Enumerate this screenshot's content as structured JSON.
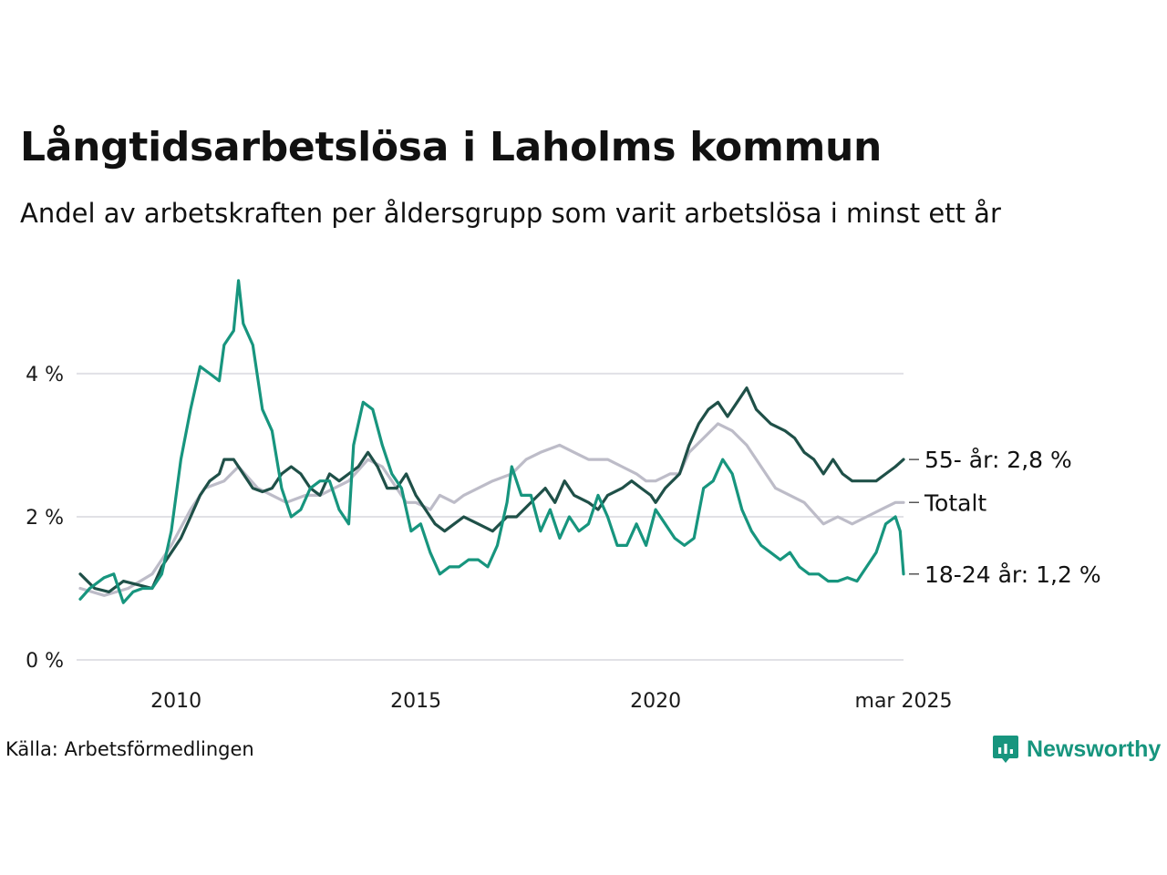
{
  "title": "Långtidsarbetslösa i Laholms kommun",
  "subtitle": "Andel av arbetskraften per åldersgrupp som varit arbetslösa i minst ett år",
  "source": "Källa: Arbetsförmedlingen",
  "brand": {
    "name": "Newsworthy",
    "icon": "newsworthy-logo-icon",
    "color": "#17957e"
  },
  "chart_data": {
    "type": "line",
    "title": "Långtidsarbetslösa i Laholms kommun",
    "subtitle": "Andel av arbetskraften per åldersgrupp som varit arbetslösa i minst ett år",
    "ylim": [
      0,
      5.4
    ],
    "yticks": [
      0,
      2,
      4
    ],
    "ytick_labels": [
      "0 %",
      "2 %",
      "4 %"
    ],
    "xlim": [
      2008.0,
      2025.17
    ],
    "xticks": [
      2010,
      2015,
      2020,
      2025.17
    ],
    "xtick_labels": [
      "2010",
      "2015",
      "2020",
      "mar 2025"
    ],
    "grid": "horizontal",
    "legend": "direct labels at line ends (right)",
    "series": [
      {
        "key": "total",
        "label": "Totalt",
        "color": "#bdbcc8",
        "points": [
          [
            2008.0,
            1.0
          ],
          [
            2008.5,
            0.9
          ],
          [
            2009.0,
            1.0
          ],
          [
            2009.5,
            1.2
          ],
          [
            2009.9,
            1.6
          ],
          [
            2010.3,
            2.1
          ],
          [
            2010.6,
            2.4
          ],
          [
            2011.0,
            2.5
          ],
          [
            2011.3,
            2.7
          ],
          [
            2011.7,
            2.4
          ],
          [
            2012.0,
            2.3
          ],
          [
            2012.3,
            2.2
          ],
          [
            2012.7,
            2.3
          ],
          [
            2013.0,
            2.3
          ],
          [
            2013.3,
            2.4
          ],
          [
            2013.6,
            2.5
          ],
          [
            2014.0,
            2.8
          ],
          [
            2014.3,
            2.7
          ],
          [
            2014.6,
            2.4
          ],
          [
            2014.8,
            2.2
          ],
          [
            2015.0,
            2.2
          ],
          [
            2015.3,
            2.1
          ],
          [
            2015.5,
            2.3
          ],
          [
            2015.8,
            2.2
          ],
          [
            2016.0,
            2.3
          ],
          [
            2016.3,
            2.4
          ],
          [
            2016.6,
            2.5
          ],
          [
            2017.0,
            2.6
          ],
          [
            2017.3,
            2.8
          ],
          [
            2017.6,
            2.9
          ],
          [
            2018.0,
            3.0
          ],
          [
            2018.3,
            2.9
          ],
          [
            2018.6,
            2.8
          ],
          [
            2019.0,
            2.8
          ],
          [
            2019.3,
            2.7
          ],
          [
            2019.6,
            2.6
          ],
          [
            2019.8,
            2.5
          ],
          [
            2020.0,
            2.5
          ],
          [
            2020.3,
            2.6
          ],
          [
            2020.5,
            2.6
          ],
          [
            2020.7,
            2.9
          ],
          [
            2021.0,
            3.1
          ],
          [
            2021.3,
            3.3
          ],
          [
            2021.6,
            3.2
          ],
          [
            2021.9,
            3.0
          ],
          [
            2022.2,
            2.7
          ],
          [
            2022.5,
            2.4
          ],
          [
            2022.8,
            2.3
          ],
          [
            2023.1,
            2.2
          ],
          [
            2023.5,
            1.9
          ],
          [
            2023.8,
            2.0
          ],
          [
            2024.1,
            1.9
          ],
          [
            2024.4,
            2.0
          ],
          [
            2024.7,
            2.1
          ],
          [
            2025.0,
            2.2
          ],
          [
            2025.17,
            2.2
          ]
        ],
        "end_value": 2.2,
        "end_label": "Totalt"
      },
      {
        "key": "55plus",
        "label": "55- år",
        "color": "#1f5048",
        "points": [
          [
            2008.0,
            1.2
          ],
          [
            2008.3,
            1.0
          ],
          [
            2008.6,
            0.95
          ],
          [
            2008.9,
            1.1
          ],
          [
            2009.2,
            1.05
          ],
          [
            2009.5,
            1.0
          ],
          [
            2009.7,
            1.3
          ],
          [
            2009.9,
            1.5
          ],
          [
            2010.1,
            1.7
          ],
          [
            2010.3,
            2.0
          ],
          [
            2010.5,
            2.3
          ],
          [
            2010.7,
            2.5
          ],
          [
            2010.9,
            2.6
          ],
          [
            2011.0,
            2.8
          ],
          [
            2011.2,
            2.8
          ],
          [
            2011.4,
            2.6
          ],
          [
            2011.6,
            2.4
          ],
          [
            2011.8,
            2.35
          ],
          [
            2012.0,
            2.4
          ],
          [
            2012.2,
            2.6
          ],
          [
            2012.4,
            2.7
          ],
          [
            2012.6,
            2.6
          ],
          [
            2012.8,
            2.4
          ],
          [
            2013.0,
            2.3
          ],
          [
            2013.2,
            2.6
          ],
          [
            2013.4,
            2.5
          ],
          [
            2013.6,
            2.6
          ],
          [
            2013.8,
            2.7
          ],
          [
            2014.0,
            2.9
          ],
          [
            2014.2,
            2.7
          ],
          [
            2014.4,
            2.4
          ],
          [
            2014.6,
            2.4
          ],
          [
            2014.8,
            2.6
          ],
          [
            2015.0,
            2.3
          ],
          [
            2015.2,
            2.1
          ],
          [
            2015.4,
            1.9
          ],
          [
            2015.6,
            1.8
          ],
          [
            2015.8,
            1.9
          ],
          [
            2016.0,
            2.0
          ],
          [
            2016.3,
            1.9
          ],
          [
            2016.6,
            1.8
          ],
          [
            2016.9,
            2.0
          ],
          [
            2017.1,
            2.0
          ],
          [
            2017.4,
            2.2
          ],
          [
            2017.7,
            2.4
          ],
          [
            2017.9,
            2.2
          ],
          [
            2018.1,
            2.5
          ],
          [
            2018.3,
            2.3
          ],
          [
            2018.6,
            2.2
          ],
          [
            2018.8,
            2.1
          ],
          [
            2019.0,
            2.3
          ],
          [
            2019.3,
            2.4
          ],
          [
            2019.5,
            2.5
          ],
          [
            2019.7,
            2.4
          ],
          [
            2019.9,
            2.3
          ],
          [
            2020.0,
            2.2
          ],
          [
            2020.2,
            2.4
          ],
          [
            2020.5,
            2.6
          ],
          [
            2020.7,
            3.0
          ],
          [
            2020.9,
            3.3
          ],
          [
            2021.1,
            3.5
          ],
          [
            2021.3,
            3.6
          ],
          [
            2021.5,
            3.4
          ],
          [
            2021.7,
            3.6
          ],
          [
            2021.9,
            3.8
          ],
          [
            2022.1,
            3.5
          ],
          [
            2022.4,
            3.3
          ],
          [
            2022.7,
            3.2
          ],
          [
            2022.9,
            3.1
          ],
          [
            2023.1,
            2.9
          ],
          [
            2023.3,
            2.8
          ],
          [
            2023.5,
            2.6
          ],
          [
            2023.7,
            2.8
          ],
          [
            2023.9,
            2.6
          ],
          [
            2024.1,
            2.5
          ],
          [
            2024.3,
            2.5
          ],
          [
            2024.6,
            2.5
          ],
          [
            2024.8,
            2.6
          ],
          [
            2025.0,
            2.7
          ],
          [
            2025.17,
            2.8
          ]
        ],
        "end_value": 2.8,
        "end_label": "55- år: 2,8 %"
      },
      {
        "key": "18to24",
        "label": "18-24 år",
        "color": "#17957e",
        "points": [
          [
            2008.0,
            0.85
          ],
          [
            2008.2,
            1.0
          ],
          [
            2008.5,
            1.15
          ],
          [
            2008.7,
            1.2
          ],
          [
            2008.9,
            0.8
          ],
          [
            2009.1,
            0.95
          ],
          [
            2009.3,
            1.0
          ],
          [
            2009.5,
            1.0
          ],
          [
            2009.7,
            1.2
          ],
          [
            2009.9,
            1.8
          ],
          [
            2010.1,
            2.8
          ],
          [
            2010.3,
            3.5
          ],
          [
            2010.5,
            4.1
          ],
          [
            2010.7,
            4.0
          ],
          [
            2010.9,
            3.9
          ],
          [
            2011.0,
            4.4
          ],
          [
            2011.2,
            4.6
          ],
          [
            2011.3,
            5.3
          ],
          [
            2011.4,
            4.7
          ],
          [
            2011.6,
            4.4
          ],
          [
            2011.8,
            3.5
          ],
          [
            2012.0,
            3.2
          ],
          [
            2012.2,
            2.4
          ],
          [
            2012.4,
            2.0
          ],
          [
            2012.6,
            2.1
          ],
          [
            2012.8,
            2.4
          ],
          [
            2013.0,
            2.5
          ],
          [
            2013.2,
            2.5
          ],
          [
            2013.4,
            2.1
          ],
          [
            2013.6,
            1.9
          ],
          [
            2013.7,
            3.0
          ],
          [
            2013.9,
            3.6
          ],
          [
            2014.1,
            3.5
          ],
          [
            2014.3,
            3.0
          ],
          [
            2014.5,
            2.6
          ],
          [
            2014.7,
            2.4
          ],
          [
            2014.9,
            1.8
          ],
          [
            2015.1,
            1.9
          ],
          [
            2015.3,
            1.5
          ],
          [
            2015.5,
            1.2
          ],
          [
            2015.7,
            1.3
          ],
          [
            2015.9,
            1.3
          ],
          [
            2016.1,
            1.4
          ],
          [
            2016.3,
            1.4
          ],
          [
            2016.5,
            1.3
          ],
          [
            2016.7,
            1.6
          ],
          [
            2016.9,
            2.2
          ],
          [
            2017.0,
            2.7
          ],
          [
            2017.2,
            2.3
          ],
          [
            2017.4,
            2.3
          ],
          [
            2017.6,
            1.8
          ],
          [
            2017.8,
            2.1
          ],
          [
            2018.0,
            1.7
          ],
          [
            2018.2,
            2.0
          ],
          [
            2018.4,
            1.8
          ],
          [
            2018.6,
            1.9
          ],
          [
            2018.8,
            2.3
          ],
          [
            2019.0,
            2.0
          ],
          [
            2019.2,
            1.6
          ],
          [
            2019.4,
            1.6
          ],
          [
            2019.6,
            1.9
          ],
          [
            2019.8,
            1.6
          ],
          [
            2020.0,
            2.1
          ],
          [
            2020.2,
            1.9
          ],
          [
            2020.4,
            1.7
          ],
          [
            2020.6,
            1.6
          ],
          [
            2020.8,
            1.7
          ],
          [
            2021.0,
            2.4
          ],
          [
            2021.2,
            2.5
          ],
          [
            2021.4,
            2.8
          ],
          [
            2021.6,
            2.6
          ],
          [
            2021.8,
            2.1
          ],
          [
            2022.0,
            1.8
          ],
          [
            2022.2,
            1.6
          ],
          [
            2022.4,
            1.5
          ],
          [
            2022.6,
            1.4
          ],
          [
            2022.8,
            1.5
          ],
          [
            2023.0,
            1.3
          ],
          [
            2023.2,
            1.2
          ],
          [
            2023.4,
            1.2
          ],
          [
            2023.6,
            1.1
          ],
          [
            2023.8,
            1.1
          ],
          [
            2024.0,
            1.15
          ],
          [
            2024.2,
            1.1
          ],
          [
            2024.4,
            1.3
          ],
          [
            2024.6,
            1.5
          ],
          [
            2024.8,
            1.9
          ],
          [
            2025.0,
            2.0
          ],
          [
            2025.1,
            1.8
          ],
          [
            2025.17,
            1.2
          ]
        ],
        "end_value": 1.2,
        "end_label": "18-24 år: 1,2 %"
      }
    ]
  }
}
